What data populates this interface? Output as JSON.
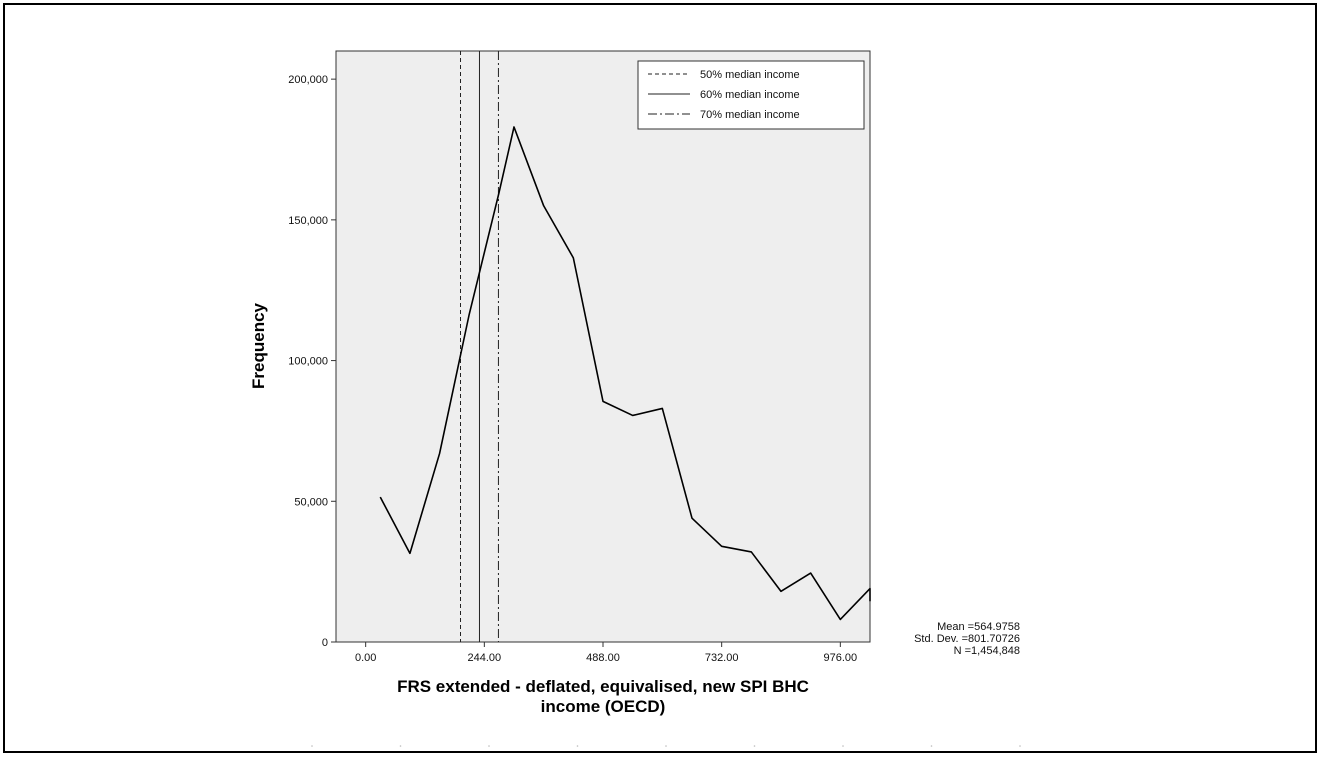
{
  "chart_data": {
    "type": "line",
    "xlabel_lines": [
      "FRS extended - deflated, equivalised, new SPI BHC",
      "income (OECD)"
    ],
    "ylabel": "Frequency",
    "xlim": [
      -61,
      1037
    ],
    "ylim": [
      0,
      210000
    ],
    "x_ticks": [
      0,
      244,
      488,
      732,
      976
    ],
    "x_tick_labels": [
      "0.00",
      "244.00",
      "488.00",
      "732.00",
      "976.00"
    ],
    "y_ticks": [
      0,
      50000,
      100000,
      150000,
      200000
    ],
    "y_tick_labels": [
      "0",
      "50,000",
      "100,000",
      "150,000",
      "200,000"
    ],
    "grid": false,
    "background": "#eeeeee",
    "legend_position": "top-right",
    "series": [
      {
        "values_x": [
          30,
          91,
          152,
          213,
          274,
          305,
          366,
          427,
          488,
          549,
          610,
          671,
          732,
          793,
          854,
          915,
          976,
          1037
        ],
        "values_y": [
          51500,
          31500,
          67000,
          116500,
          159500,
          183000,
          155000,
          136500,
          85500,
          80500,
          83000,
          44000,
          34000,
          32000,
          18000,
          24500,
          8000,
          19000
        ],
        "color": "#000000"
      }
    ],
    "tail_point": {
      "x": 1037,
      "y": 19000,
      "end_x": 1037,
      "end_y": 14500
    },
    "reference_lines": [
      {
        "name": "50% median income",
        "x": 195,
        "style": "dashed"
      },
      {
        "name": "60% median income",
        "x": 234,
        "style": "solid"
      },
      {
        "name": "70% median income",
        "x": 273,
        "style": "dashdot"
      }
    ],
    "stats": {
      "mean": "Mean =564.9758",
      "std": "Std. Dev. =801.70726",
      "n": "N =1,454,848"
    }
  }
}
